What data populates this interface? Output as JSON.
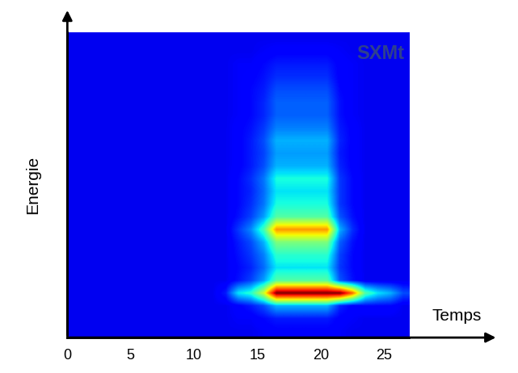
{
  "chart_data": {
    "type": "heatmap",
    "text": "SXMt",
    "x_label": "Temps",
    "y_label": "Energie",
    "xlim": [
      0,
      27
    ],
    "ylim": [
      0,
      24
    ],
    "xticks": [
      0,
      5,
      10,
      15,
      20,
      25
    ],
    "yticks": [],
    "tick_labels": "x",
    "color_range": [
      0,
      1
    ],
    "cells": [
      [
        0.1,
        0.1,
        0.1,
        0.1,
        0.1,
        0.1,
        0.1,
        0.1,
        0.1,
        0.1,
        0.1,
        0.1,
        0.1,
        0.1,
        0.1,
        0.11,
        0.12,
        0.12,
        0.12,
        0.12,
        0.12,
        0.11,
        0.1,
        0.1,
        0.1,
        0.1,
        0.1
      ],
      [
        0.1,
        0.1,
        0.1,
        0.1,
        0.1,
        0.1,
        0.1,
        0.1,
        0.1,
        0.1,
        0.1,
        0.1,
        0.1,
        0.11,
        0.11,
        0.13,
        0.15,
        0.15,
        0.15,
        0.15,
        0.15,
        0.12,
        0.11,
        0.1,
        0.1,
        0.1,
        0.1
      ],
      [
        0.1,
        0.1,
        0.1,
        0.1,
        0.1,
        0.1,
        0.1,
        0.1,
        0.1,
        0.1,
        0.1,
        0.1,
        0.1,
        0.12,
        0.15,
        0.2,
        0.3,
        0.3,
        0.3,
        0.3,
        0.3,
        0.16,
        0.12,
        0.13,
        0.13,
        0.13,
        0.1
      ],
      [
        0.1,
        0.1,
        0.1,
        0.1,
        0.1,
        0.1,
        0.1,
        0.1,
        0.1,
        0.1,
        0.1,
        0.1,
        0.15,
        0.35,
        0.4,
        0.6,
        1.0,
        1.0,
        1.0,
        1.0,
        1.0,
        1.0,
        0.8,
        0.45,
        0.35,
        0.3,
        0.2
      ],
      [
        0.1,
        0.1,
        0.1,
        0.1,
        0.1,
        0.1,
        0.1,
        0.1,
        0.1,
        0.1,
        0.1,
        0.1,
        0.1,
        0.14,
        0.19,
        0.28,
        0.45,
        0.45,
        0.45,
        0.45,
        0.45,
        0.21,
        0.14,
        0.1,
        0.1,
        0.1,
        0.1
      ],
      [
        0.1,
        0.1,
        0.1,
        0.1,
        0.1,
        0.1,
        0.1,
        0.1,
        0.1,
        0.1,
        0.1,
        0.1,
        0.1,
        0.13,
        0.16,
        0.23,
        0.35,
        0.35,
        0.35,
        0.35,
        0.35,
        0.18,
        0.13,
        0.1,
        0.1,
        0.1,
        0.1
      ],
      [
        0.1,
        0.1,
        0.1,
        0.1,
        0.1,
        0.1,
        0.1,
        0.1,
        0.1,
        0.1,
        0.1,
        0.1,
        0.1,
        0.14,
        0.18,
        0.25,
        0.4,
        0.4,
        0.4,
        0.4,
        0.4,
        0.19,
        0.13,
        0.1,
        0.1,
        0.1,
        0.1
      ],
      [
        0.1,
        0.1,
        0.1,
        0.1,
        0.1,
        0.1,
        0.1,
        0.1,
        0.1,
        0.1,
        0.1,
        0.1,
        0.1,
        0.15,
        0.2,
        0.3,
        0.5,
        0.5,
        0.5,
        0.5,
        0.5,
        0.22,
        0.14,
        0.1,
        0.1,
        0.1,
        0.1
      ],
      [
        0.1,
        0.1,
        0.1,
        0.1,
        0.1,
        0.1,
        0.1,
        0.1,
        0.1,
        0.1,
        0.1,
        0.1,
        0.1,
        0.18,
        0.26,
        0.43,
        0.75,
        0.75,
        0.75,
        0.75,
        0.75,
        0.3,
        0.17,
        0.1,
        0.1,
        0.1,
        0.1
      ],
      [
        0.1,
        0.1,
        0.1,
        0.1,
        0.1,
        0.1,
        0.1,
        0.1,
        0.1,
        0.1,
        0.1,
        0.1,
        0.1,
        0.14,
        0.19,
        0.28,
        0.45,
        0.45,
        0.45,
        0.45,
        0.45,
        0.21,
        0.14,
        0.1,
        0.1,
        0.1,
        0.1
      ],
      [
        0.1,
        0.1,
        0.1,
        0.1,
        0.1,
        0.1,
        0.1,
        0.1,
        0.1,
        0.1,
        0.1,
        0.1,
        0.1,
        0.13,
        0.17,
        0.24,
        0.38,
        0.38,
        0.38,
        0.38,
        0.38,
        0.18,
        0.13,
        0.1,
        0.1,
        0.1,
        0.1
      ],
      [
        0.1,
        0.1,
        0.1,
        0.1,
        0.1,
        0.1,
        0.1,
        0.1,
        0.1,
        0.1,
        0.1,
        0.1,
        0.1,
        0.13,
        0.16,
        0.23,
        0.35,
        0.35,
        0.35,
        0.35,
        0.35,
        0.18,
        0.13,
        0.1,
        0.1,
        0.1,
        0.1
      ],
      [
        0.1,
        0.1,
        0.1,
        0.1,
        0.1,
        0.1,
        0.1,
        0.1,
        0.1,
        0.1,
        0.1,
        0.1,
        0.1,
        0.13,
        0.17,
        0.24,
        0.38,
        0.38,
        0.38,
        0.38,
        0.38,
        0.18,
        0.13,
        0.1,
        0.1,
        0.1,
        0.1
      ],
      [
        0.1,
        0.1,
        0.1,
        0.1,
        0.1,
        0.1,
        0.1,
        0.1,
        0.1,
        0.1,
        0.1,
        0.1,
        0.1,
        0.12,
        0.15,
        0.2,
        0.3,
        0.3,
        0.3,
        0.3,
        0.3,
        0.16,
        0.12,
        0.1,
        0.1,
        0.1,
        0.1
      ],
      [
        0.1,
        0.1,
        0.1,
        0.1,
        0.1,
        0.1,
        0.1,
        0.1,
        0.1,
        0.1,
        0.1,
        0.1,
        0.1,
        0.12,
        0.15,
        0.19,
        0.28,
        0.28,
        0.28,
        0.28,
        0.28,
        0.15,
        0.12,
        0.1,
        0.1,
        0.1,
        0.1
      ],
      [
        0.1,
        0.1,
        0.1,
        0.1,
        0.1,
        0.1,
        0.1,
        0.1,
        0.1,
        0.1,
        0.1,
        0.1,
        0.1,
        0.12,
        0.15,
        0.2,
        0.3,
        0.3,
        0.3,
        0.3,
        0.3,
        0.16,
        0.12,
        0.1,
        0.1,
        0.1,
        0.1
      ],
      [
        0.1,
        0.1,
        0.1,
        0.1,
        0.1,
        0.1,
        0.1,
        0.1,
        0.1,
        0.1,
        0.1,
        0.1,
        0.1,
        0.12,
        0.14,
        0.18,
        0.25,
        0.25,
        0.25,
        0.25,
        0.25,
        0.15,
        0.12,
        0.1,
        0.1,
        0.1,
        0.1
      ],
      [
        0.1,
        0.1,
        0.1,
        0.1,
        0.1,
        0.1,
        0.1,
        0.1,
        0.1,
        0.1,
        0.1,
        0.1,
        0.1,
        0.11,
        0.13,
        0.16,
        0.22,
        0.22,
        0.22,
        0.22,
        0.22,
        0.14,
        0.11,
        0.1,
        0.1,
        0.1,
        0.1
      ],
      [
        0.1,
        0.1,
        0.1,
        0.1,
        0.1,
        0.1,
        0.1,
        0.1,
        0.1,
        0.1,
        0.1,
        0.1,
        0.1,
        0.11,
        0.13,
        0.16,
        0.22,
        0.22,
        0.22,
        0.22,
        0.22,
        0.14,
        0.11,
        0.1,
        0.1,
        0.1,
        0.1
      ],
      [
        0.1,
        0.1,
        0.1,
        0.1,
        0.1,
        0.1,
        0.1,
        0.1,
        0.1,
        0.1,
        0.1,
        0.1,
        0.1,
        0.11,
        0.13,
        0.15,
        0.2,
        0.2,
        0.2,
        0.2,
        0.2,
        0.13,
        0.11,
        0.1,
        0.1,
        0.1,
        0.1
      ],
      [
        0.1,
        0.1,
        0.1,
        0.1,
        0.1,
        0.1,
        0.1,
        0.1,
        0.1,
        0.1,
        0.1,
        0.1,
        0.1,
        0.11,
        0.12,
        0.14,
        0.17,
        0.17,
        0.17,
        0.17,
        0.17,
        0.12,
        0.11,
        0.1,
        0.1,
        0.1,
        0.1
      ],
      [
        0.1,
        0.1,
        0.1,
        0.1,
        0.1,
        0.1,
        0.1,
        0.1,
        0.1,
        0.1,
        0.1,
        0.1,
        0.1,
        0.11,
        0.11,
        0.13,
        0.15,
        0.15,
        0.15,
        0.15,
        0.15,
        0.12,
        0.11,
        0.1,
        0.1,
        0.1,
        0.1
      ],
      [
        0.1,
        0.1,
        0.1,
        0.1,
        0.1,
        0.1,
        0.1,
        0.1,
        0.1,
        0.1,
        0.1,
        0.1,
        0.1,
        0.1,
        0.1,
        0.11,
        0.12,
        0.12,
        0.12,
        0.12,
        0.12,
        0.11,
        0.1,
        0.1,
        0.1,
        0.1,
        0.1
      ],
      [
        0.1,
        0.1,
        0.1,
        0.1,
        0.1,
        0.1,
        0.1,
        0.1,
        0.1,
        0.1,
        0.1,
        0.1,
        0.1,
        0.1,
        0.1,
        0.1,
        0.1,
        0.1,
        0.1,
        0.1,
        0.1,
        0.1,
        0.1,
        0.1,
        0.1,
        0.1,
        0.1
      ]
    ]
  }
}
